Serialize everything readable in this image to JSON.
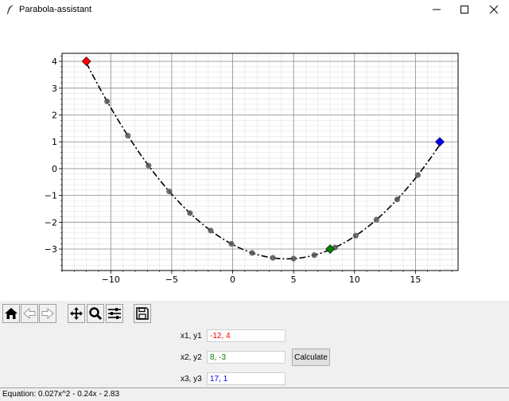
{
  "window": {
    "title": "Parabola-assistant"
  },
  "toolbar": {
    "buttons": [
      "home-icon",
      "back-icon",
      "forward-icon",
      "pan-icon",
      "zoom-icon",
      "configure-subplots-icon",
      "save-icon"
    ]
  },
  "inputs": [
    {
      "label": "x1, y1",
      "value": "-12, 4",
      "color": "#ff0000"
    },
    {
      "label": "x2, y2",
      "value": "8, -3",
      "color": "#008000"
    },
    {
      "label": "x3, y3",
      "value": "17, 1",
      "color": "#0000ff"
    }
  ],
  "calculate_label": "Calculate",
  "status": {
    "equation": "Equation: 0.027x^2 - 0.24x - 2.83"
  },
  "chart_data": {
    "type": "scatter",
    "xlim": [
      -14,
      18.5
    ],
    "ylim": [
      -3.8,
      4.3
    ],
    "xticks": [
      -10,
      -5,
      0,
      5,
      10,
      15
    ],
    "xtick_labels": [
      "−10",
      "−5",
      "0",
      "5",
      "10",
      "15"
    ],
    "yticks": [
      -3,
      -2,
      -1,
      0,
      1,
      2,
      3,
      4
    ],
    "ytick_labels": [
      "−3",
      "−2",
      "−1",
      "0",
      "1",
      "2",
      "3",
      "4"
    ],
    "grid": true,
    "minor_grid": true,
    "curve": {
      "a": 0.027,
      "b": -0.24,
      "c": -2.83,
      "x_range": [
        -12,
        17
      ],
      "style": "dashdot",
      "color": "#000000"
    },
    "sample_points": {
      "color": "#555555",
      "x": [
        -10.3,
        -8.6,
        -6.9,
        -5.2,
        -3.5,
        -1.8,
        -0.1,
        1.6,
        3.3,
        5.0,
        6.7,
        8.4,
        10.1,
        11.8,
        13.5,
        15.2
      ]
    },
    "key_points": [
      {
        "x": -12,
        "y": 4,
        "color": "#ff0000"
      },
      {
        "x": 8,
        "y": -3,
        "color": "#008000"
      },
      {
        "x": 17,
        "y": 1,
        "color": "#0000ff"
      }
    ]
  }
}
